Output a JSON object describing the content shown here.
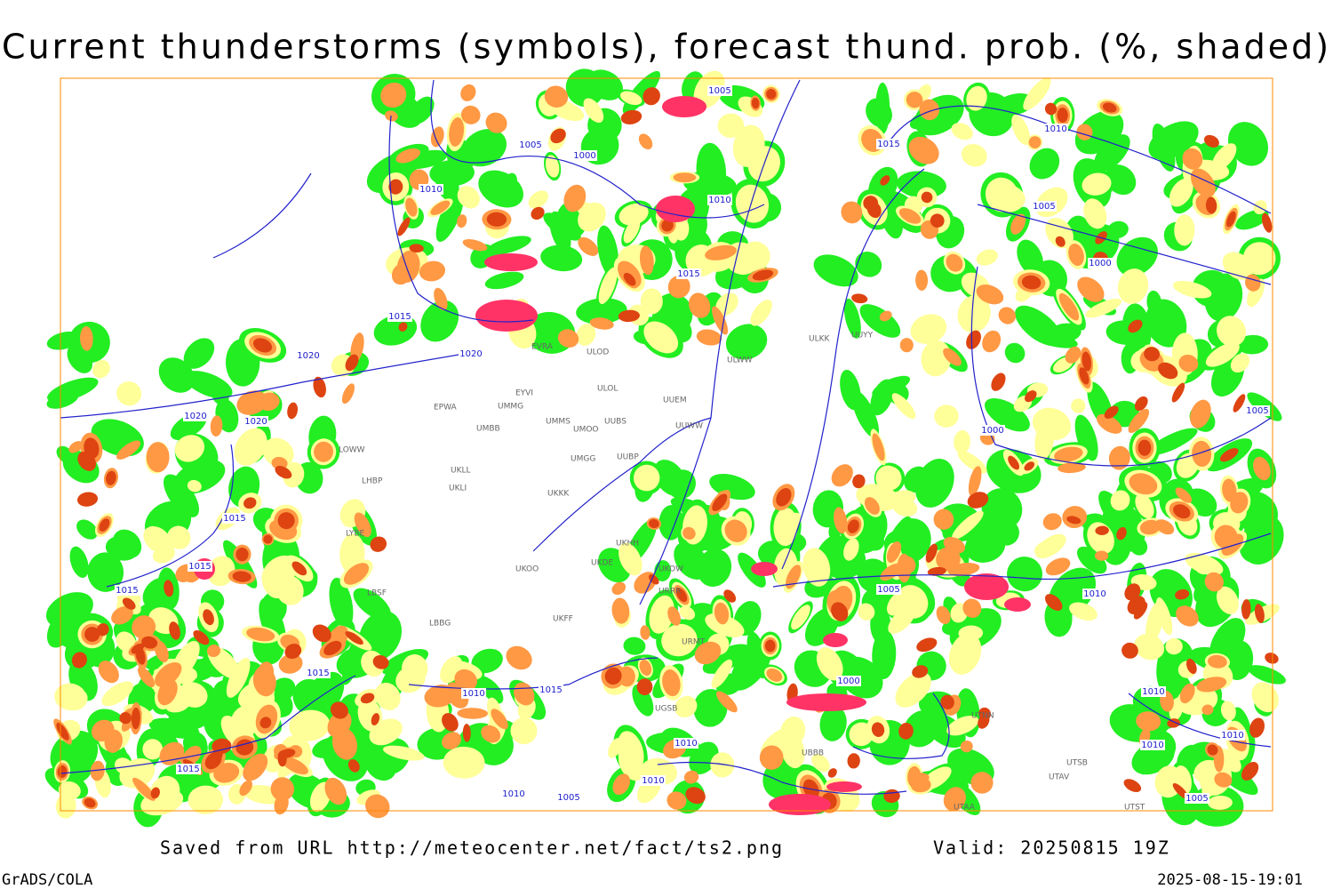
{
  "header": {
    "title": "Current thunderstorms (symbols), forecast thund. prob. (%, shaded)"
  },
  "footer": {
    "saved": "Saved from URL http://meteocenter.net/fact/ts2.png",
    "valid": "Valid: 20250815 19Z",
    "software": "GrADS/COLA",
    "timestamp": "2025-08-15-19:01"
  },
  "isobars": [
    "1005",
    "1005",
    "1000",
    "1010",
    "1010",
    "1015",
    "1015",
    "1020",
    "1020",
    "1020",
    "1020",
    "1015",
    "1015",
    "1015",
    "1015",
    "1015",
    "1010",
    "1015",
    "1010",
    "1005",
    "1000",
    "1010",
    "1010",
    "1005",
    "1010",
    "1015",
    "1010",
    "1005",
    "1000",
    "1000",
    "1005",
    "1005",
    "1010",
    "1010",
    "1010"
  ],
  "stations": [
    "EVRA",
    "ULOD",
    "ULOL",
    "EYVI",
    "UMMG",
    "EPWA",
    "UMBB",
    "UMMS",
    "UMOO",
    "UUBS",
    "UUEM",
    "UUWW",
    "UMGG",
    "UUBP",
    "UKLL",
    "UKLI",
    "UKKK",
    "LOWW",
    "LHBP",
    "LYBE",
    "LBSF",
    "LBBG",
    "UKFF",
    "UKOO",
    "UKDE",
    "UKHH",
    "UKOW",
    "URRR",
    "URMT",
    "UGSB",
    "UBBB",
    "UTNN",
    "UTAA",
    "ULKK",
    "UUYY",
    "ULWW",
    "UTSB",
    "UTAV",
    "UTST"
  ]
}
